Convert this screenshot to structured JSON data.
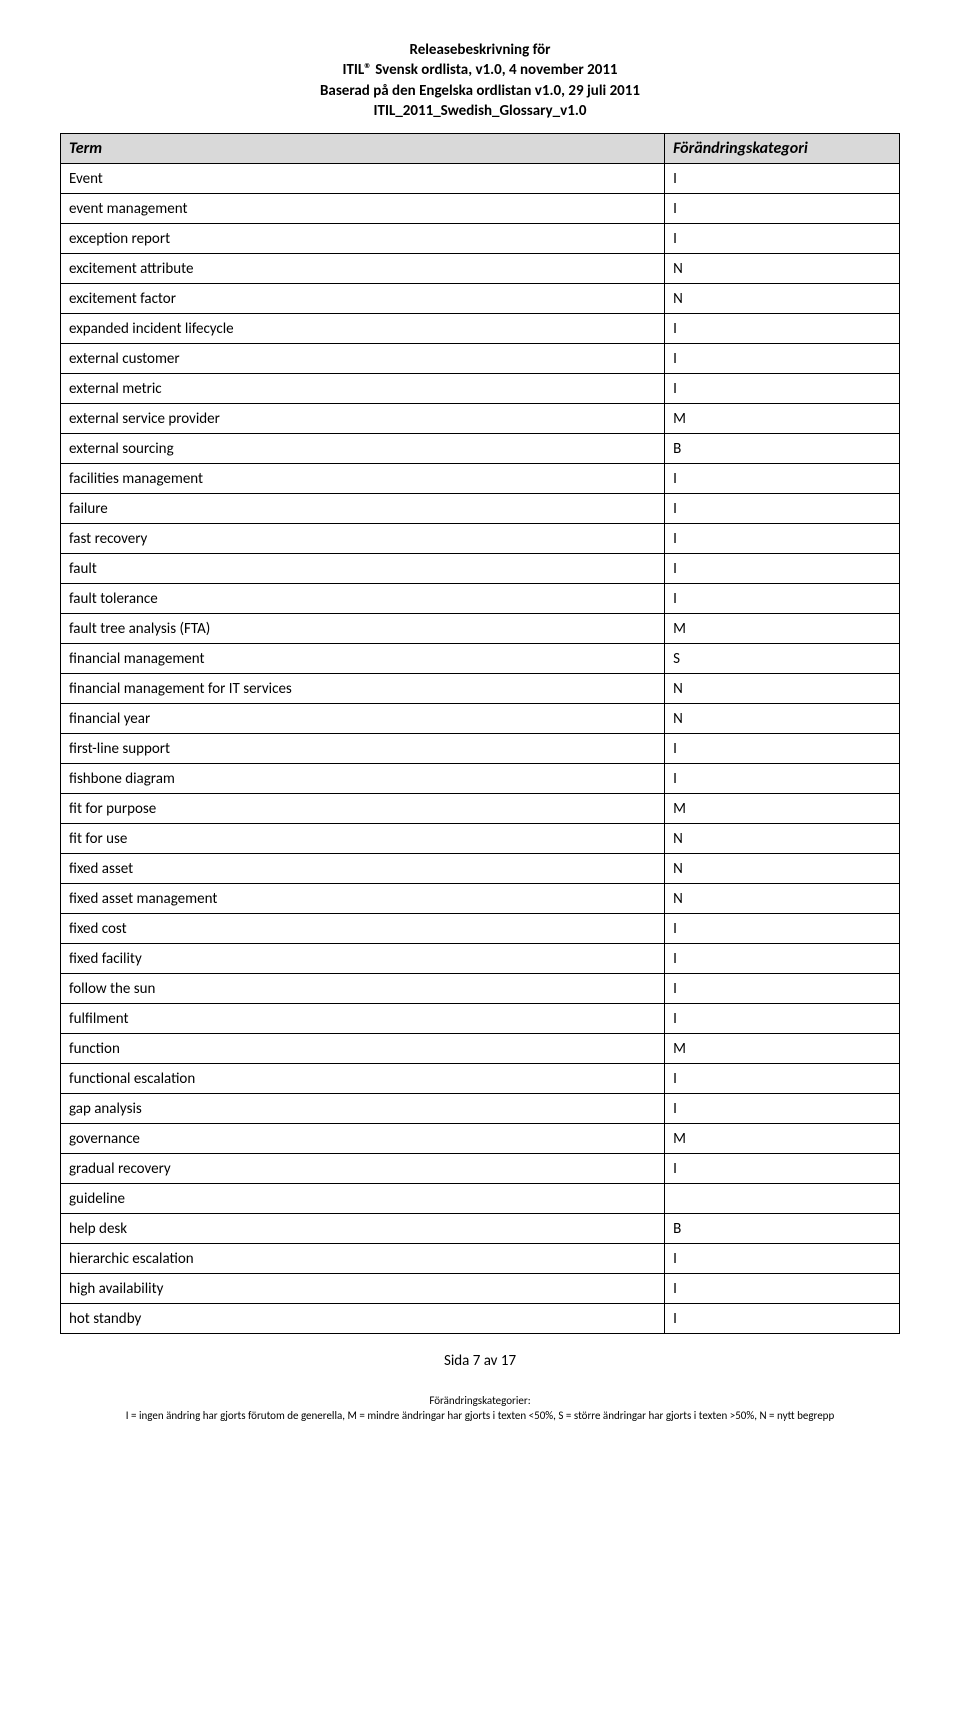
{
  "header": {
    "line1": "Releasebeskrivning för",
    "line2": "ITIL® Svensk ordlista, v1.0, 4 november 2011",
    "line3": "Baserad på den Engelska ordlistan v1.0, 29 juli 2011",
    "line4": "ITIL_2011_Swedish_Glossary_v1.0"
  },
  "table": {
    "columns": [
      "Term",
      "Förändringskategori"
    ],
    "rows": [
      [
        "Event",
        "I"
      ],
      [
        "event management",
        "I"
      ],
      [
        "exception report",
        "I"
      ],
      [
        "excitement attribute",
        "N"
      ],
      [
        "excitement factor",
        "N"
      ],
      [
        "expanded incident lifecycle",
        "I"
      ],
      [
        "external customer",
        "I"
      ],
      [
        "external metric",
        "I"
      ],
      [
        "external service provider",
        "M"
      ],
      [
        "external sourcing",
        "B"
      ],
      [
        "facilities management",
        "I"
      ],
      [
        "failure",
        "I"
      ],
      [
        "fast recovery",
        "I"
      ],
      [
        "fault",
        "I"
      ],
      [
        "fault tolerance",
        "I"
      ],
      [
        "fault tree analysis (FTA)",
        "M"
      ],
      [
        "financial management",
        "S"
      ],
      [
        "financial management for IT services",
        "N"
      ],
      [
        "financial year",
        "N"
      ],
      [
        "first-line support",
        "I"
      ],
      [
        "fishbone diagram",
        "I"
      ],
      [
        "fit for purpose",
        "M"
      ],
      [
        "fit for use",
        "N"
      ],
      [
        "fixed asset",
        "N"
      ],
      [
        "fixed asset management",
        "N"
      ],
      [
        "fixed cost",
        "I"
      ],
      [
        "fixed facility",
        "I"
      ],
      [
        "follow the sun",
        "I"
      ],
      [
        "fulfilment",
        "I"
      ],
      [
        "function",
        "M"
      ],
      [
        "functional escalation",
        "I"
      ],
      [
        "gap analysis",
        "I"
      ],
      [
        "governance",
        "M"
      ],
      [
        "gradual recovery",
        "I"
      ],
      [
        "guideline",
        ""
      ],
      [
        "help desk",
        "B"
      ],
      [
        "hierarchic escalation",
        "I"
      ],
      [
        "high availability",
        "I"
      ],
      [
        "hot standby",
        "I"
      ]
    ]
  },
  "footer": {
    "page": "Sida 7 av 17",
    "legend_title": "Förändringskategorier:",
    "legend_text": "I = ingen ändring har gjorts förutom de generella, M = mindre ändringar har gjorts i texten <50%, S = större ändringar har gjorts i texten >50%, N = nytt begrepp"
  }
}
